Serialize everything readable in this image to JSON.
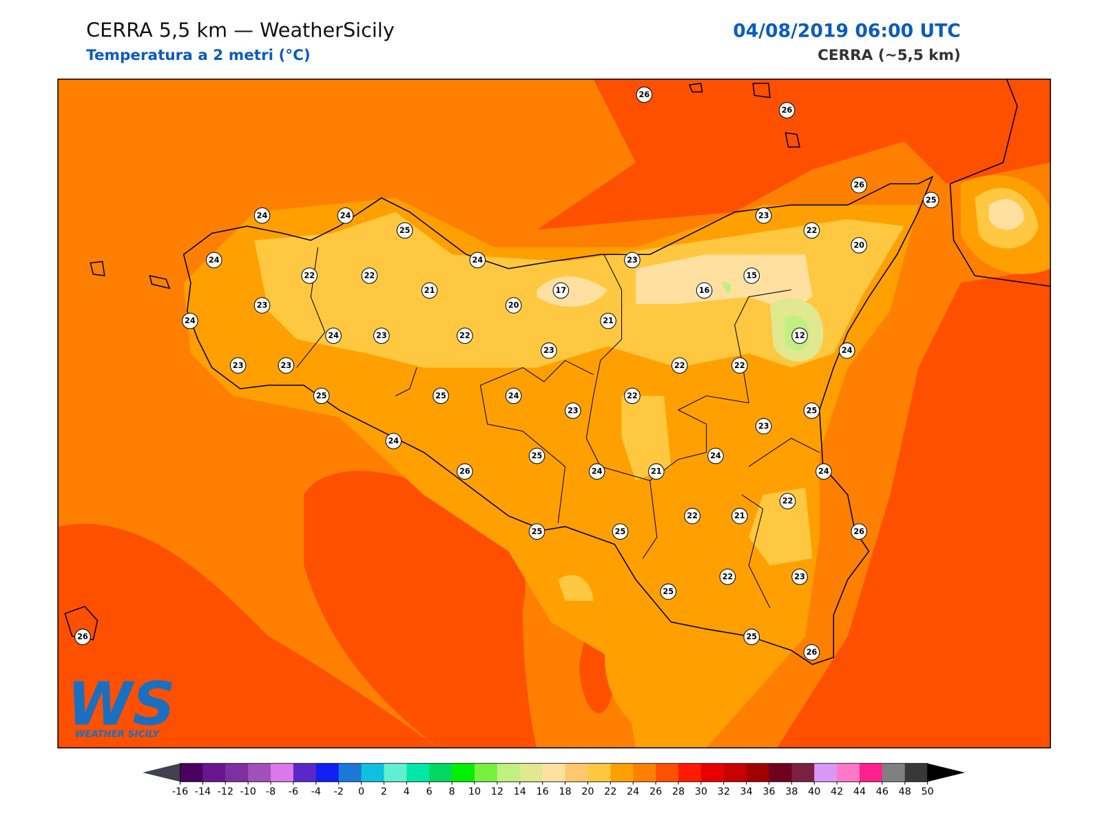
{
  "header": {
    "title": "CERRA 5,5 km — WeatherSicily",
    "subtitle": "Temperatura a 2 metri (°C)",
    "date": "04/08/2019 06:00 UTC",
    "model": "CERRA (~5,5 km)"
  },
  "stations": [
    26,
    26,
    26,
    25,
    24,
    24,
    25,
    23,
    22,
    20,
    24,
    22,
    22,
    24,
    23,
    15,
    21,
    17,
    16,
    23,
    20,
    24,
    21,
    24,
    23,
    22,
    12,
    23,
    24,
    23,
    23,
    22,
    22,
    25,
    25,
    24,
    22,
    23,
    25,
    23,
    24,
    24,
    25,
    26,
    24,
    21,
    24,
    22,
    22,
    21,
    25,
    25,
    26,
    25,
    22,
    23,
    26,
    25,
    26
  ],
  "colorbar": {
    "ticks": [
      -16,
      -14,
      -12,
      -10,
      -8,
      -6,
      -4,
      -2,
      0,
      2,
      4,
      6,
      8,
      10,
      12,
      14,
      16,
      18,
      20,
      22,
      24,
      26,
      28,
      30,
      32,
      34,
      36,
      38,
      40,
      42,
      44,
      46,
      48,
      50
    ],
    "colors": [
      "#4a0060",
      "#6a1590",
      "#7d30a0",
      "#a050b8",
      "#dc78e8",
      "#5a28c8",
      "#1020f0",
      "#1a78d8",
      "#10c0e0",
      "#60f0d0",
      "#00e8a8",
      "#00d860",
      "#00f000",
      "#78f040",
      "#c0f080",
      "#e0e890",
      "#ffe0a0",
      "#ffc870",
      "#ffc840",
      "#ffa000",
      "#ff8000",
      "#ff5000",
      "#ff1a00",
      "#e80000",
      "#c80000",
      "#a00000",
      "#700020",
      "#7a2040",
      "#d898f8",
      "#ff78c8",
      "#ff2090",
      "#808080",
      "#383838"
    ],
    "extend_colors": [
      "#404050",
      "#000000"
    ]
  },
  "logo": {
    "letters": "WS",
    "name": "WEATHER SICILY"
  }
}
